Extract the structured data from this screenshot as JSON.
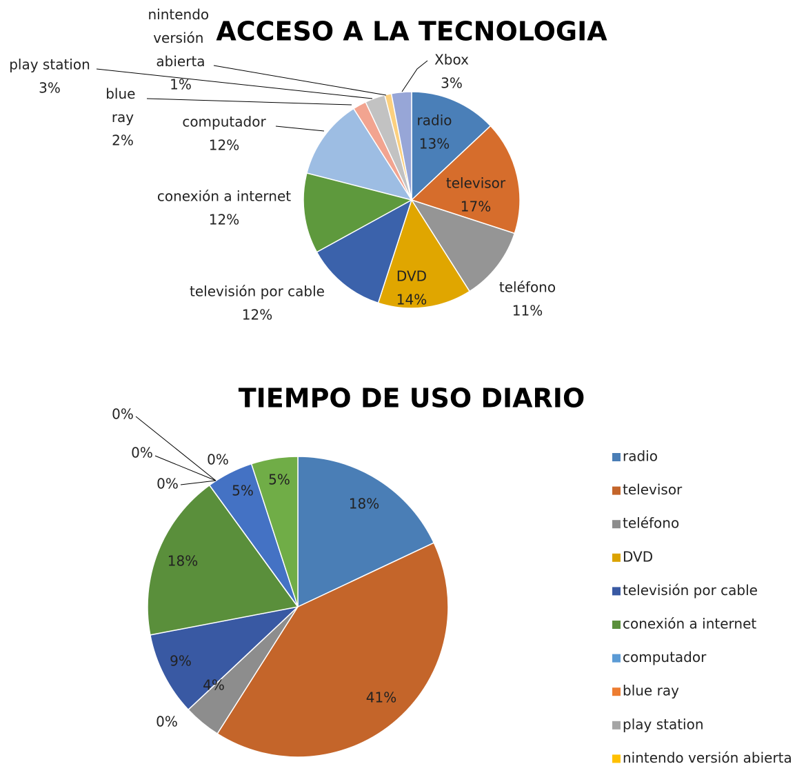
{
  "chart_data": [
    {
      "type": "pie",
      "title": "ACCESO A LA TECNOLOGIA",
      "categories": [
        "radio",
        "televisor",
        "teléfono",
        "DVD",
        "televisión por cable",
        "conexión a internet",
        "computador",
        "blue ray",
        "play station",
        "nintendo versión abierta",
        "Xbox"
      ],
      "values": [
        13,
        17,
        11,
        14,
        12,
        12,
        12,
        2,
        3,
        1,
        3
      ],
      "value_labels": [
        "13%",
        "17%",
        "11%",
        "14%",
        "12%",
        "12%",
        "12%",
        "2%",
        "3%",
        "1%",
        "3%"
      ],
      "colors": [
        "#4a7fb8",
        "#d66d2c",
        "#959595",
        "#e0a600",
        "#3b62ab",
        "#5e993d",
        "#9dbde3",
        "#f2a490",
        "#c2c2c2",
        "#fcd07f",
        "#97a6d7"
      ]
    },
    {
      "type": "pie",
      "title": "TIEMPO DE USO DIARIO",
      "categories": [
        "radio",
        "televisor",
        "teléfono",
        "DVD",
        "televisión por cable",
        "conexión a internet",
        "computador",
        "blue ray",
        "play station",
        "nintendo versión abierta",
        null,
        null
      ],
      "values": [
        18,
        41,
        4,
        0,
        9,
        18,
        0,
        0,
        0,
        0,
        5,
        5
      ],
      "value_labels": [
        "18%",
        "41%",
        "4%",
        "0%",
        "9%",
        "18%",
        "0%",
        "0%",
        "0%",
        "0%",
        "5%",
        "5%"
      ],
      "colors": [
        "#4a7eb6",
        "#c4652a",
        "#8d8d8d",
        "#dba300",
        "#3959a3",
        "#5a8f3b",
        "#5b9bd5",
        "#ed7d31",
        "#a5a5a5",
        "#ffc000",
        "#4472c4",
        "#70ad47"
      ],
      "legend": "right"
    }
  ]
}
